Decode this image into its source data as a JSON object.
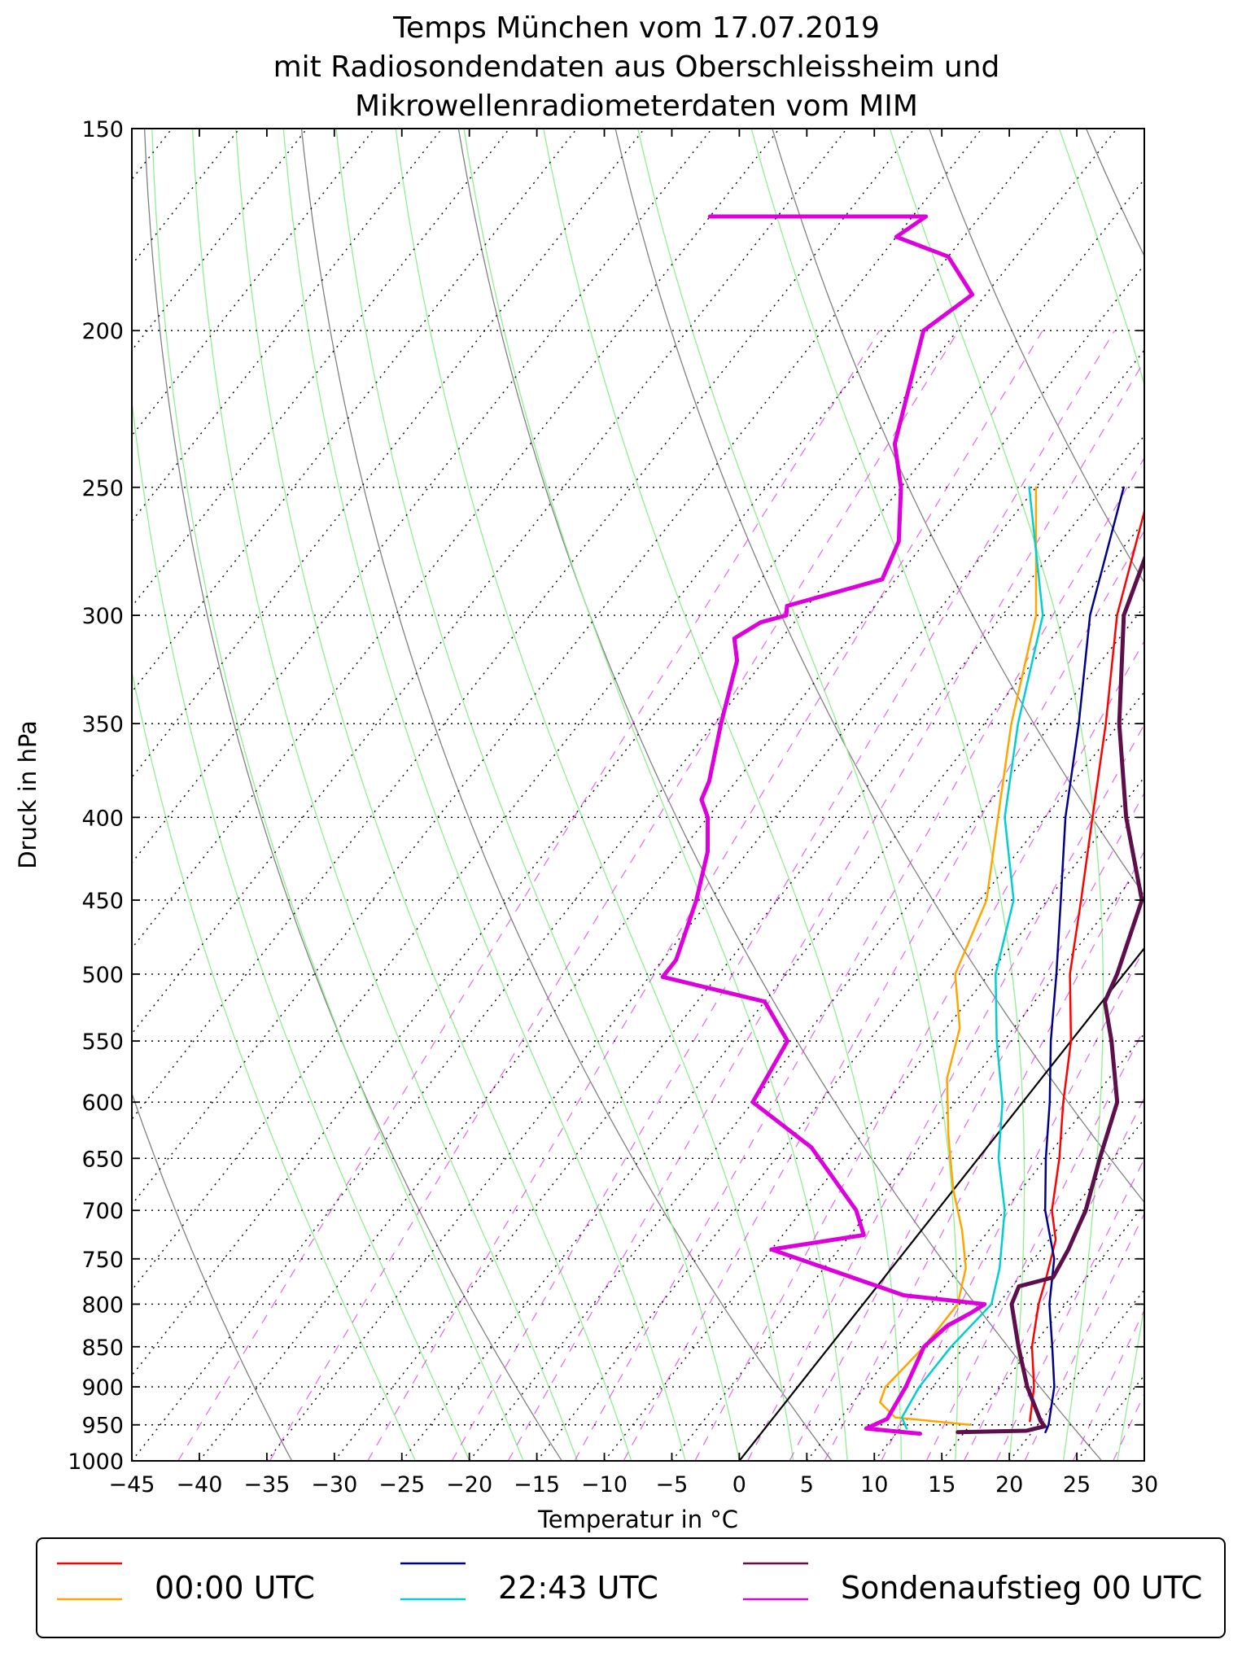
{
  "chart_data": {
    "type": "line",
    "subtype": "skew-T log-p diagram",
    "title": [
      "Temps München vom 17.07.2019",
      "mit Radiosondendaten aus Oberschleissheim und",
      "Mikrowellenradiometerdaten vom MIM"
    ],
    "xlabel": "Temperatur in °C",
    "ylabel": "Druck in hPa",
    "xlim": [
      -45,
      30
    ],
    "ylim": [
      1000,
      150
    ],
    "y_scale": "log",
    "x_ticks": [
      -45,
      -40,
      -35,
      -30,
      -25,
      -20,
      -15,
      -10,
      -5,
      0,
      5,
      10,
      15,
      20,
      25,
      30
    ],
    "y_ticks": [
      1000,
      950,
      900,
      850,
      800,
      750,
      700,
      650,
      600,
      550,
      500,
      450,
      400,
      350,
      300,
      250,
      200,
      150
    ],
    "x_tick_labels": [
      "−45",
      "−40",
      "−35",
      "−30",
      "−25",
      "−20",
      "−15",
      "−10",
      "−5",
      "0",
      "5",
      "10",
      "15",
      "20",
      "25",
      "30"
    ],
    "grid": true,
    "background_lines": {
      "isotherms": "dotted black, skewed",
      "dry_adiabats": "thin grey",
      "moist_adiabats": "thin light green",
      "mixing_ratio_lines": "dashed magenta"
    },
    "legend": {
      "placement": "bottom",
      "entries": [
        {
          "label": "00:00 UTC",
          "colors": [
            "#ff0000",
            "#ffa500"
          ]
        },
        {
          "label": "22:43 UTC",
          "colors": [
            "#00008b",
            "#00ced1"
          ]
        },
        {
          "label": "Sondenaufstieg 00 UTC",
          "colors": [
            "#5c0f4a",
            "#dd00dd"
          ]
        }
      ]
    },
    "series": [
      {
        "name": "00:00 UTC",
        "variable": "temperature",
        "color": "#ff0000",
        "points": [
          [
            19.2,
            945
          ],
          [
            17.5,
            900
          ],
          [
            15.0,
            850
          ],
          [
            13.0,
            800
          ],
          [
            12.0,
            770
          ],
          [
            10.5,
            730
          ],
          [
            8.5,
            700
          ],
          [
            6.0,
            650
          ],
          [
            3.0,
            600
          ],
          [
            0.0,
            550
          ],
          [
            -4.0,
            500
          ],
          [
            -7.5,
            450
          ],
          [
            -11.5,
            400
          ],
          [
            -16.0,
            350
          ],
          [
            -21.5,
            300
          ],
          [
            -26.5,
            250
          ]
        ]
      },
      {
        "name": "00:00 UTC",
        "variable": "dewpoint",
        "color": "#ffa500",
        "points": [
          [
            15.0,
            950
          ],
          [
            9.0,
            940
          ],
          [
            7.0,
            920
          ],
          [
            6.5,
            900
          ],
          [
            7.0,
            850
          ],
          [
            7.0,
            800
          ],
          [
            5.5,
            760
          ],
          [
            3.0,
            720
          ],
          [
            0.0,
            680
          ],
          [
            -3.5,
            630
          ],
          [
            -7.0,
            580
          ],
          [
            -9.0,
            540
          ],
          [
            -12.5,
            500
          ],
          [
            -14.5,
            450
          ],
          [
            -18.5,
            400
          ],
          [
            -23.0,
            350
          ],
          [
            -27.5,
            300
          ],
          [
            -35.0,
            250
          ]
        ]
      },
      {
        "name": "22:43 UTC",
        "variable": "temperature",
        "color": "#00008b",
        "points": [
          [
            21.0,
            960
          ],
          [
            20.8,
            950
          ],
          [
            19.0,
            900
          ],
          [
            16.5,
            850
          ],
          [
            13.8,
            800
          ],
          [
            11.5,
            750
          ],
          [
            8.0,
            700
          ],
          [
            5.0,
            650
          ],
          [
            2.0,
            600
          ],
          [
            -1.5,
            550
          ],
          [
            -5.0,
            500
          ],
          [
            -9.0,
            450
          ],
          [
            -13.5,
            400
          ],
          [
            -18.0,
            350
          ],
          [
            -23.5,
            300
          ],
          [
            -28.5,
            250
          ]
        ]
      },
      {
        "name": "22:43 UTC",
        "variable": "dewpoint",
        "color": "#00ced1",
        "points": [
          [
            10.5,
            955
          ],
          [
            9.5,
            940
          ],
          [
            9.0,
            900
          ],
          [
            9.0,
            850
          ],
          [
            9.5,
            800
          ],
          [
            8.0,
            760
          ],
          [
            5.0,
            700
          ],
          [
            1.5,
            650
          ],
          [
            -1.5,
            600
          ],
          [
            -5.5,
            550
          ],
          [
            -9.5,
            500
          ],
          [
            -12.5,
            450
          ],
          [
            -18.0,
            400
          ],
          [
            -22.5,
            350
          ],
          [
            -27.0,
            300
          ],
          [
            -35.5,
            250
          ]
        ]
      },
      {
        "name": "Sondenaufstieg 00 UTC",
        "variable": "temperature",
        "color": "#5c0f4a",
        "points": [
          [
            14.5,
            960
          ],
          [
            19.5,
            958
          ],
          [
            20.6,
            952
          ],
          [
            20.0,
            945
          ],
          [
            17.0,
            900
          ],
          [
            14.0,
            850
          ],
          [
            11.0,
            800
          ],
          [
            10.5,
            780
          ],
          [
            12.5,
            770
          ],
          [
            12.0,
            740
          ],
          [
            11.5,
            720
          ],
          [
            11.0,
            700
          ],
          [
            9.0,
            650
          ],
          [
            7.0,
            600
          ],
          [
            3.0,
            550
          ],
          [
            0.2,
            520
          ],
          [
            -0.5,
            500
          ],
          [
            -3.0,
            450
          ],
          [
            -9.0,
            400
          ],
          [
            -15.0,
            350
          ],
          [
            -21.0,
            300
          ],
          [
            -25.0,
            250
          ],
          [
            -29.0,
            200
          ],
          [
            -32.0,
            180
          ],
          [
            -31.5,
            170
          ],
          [
            -30.5,
            165
          ],
          [
            -27.0,
            158
          ],
          [
            -24.5,
            150
          ]
        ]
      },
      {
        "name": "Sondenaufstieg 00 UTC",
        "variable": "dewpoint",
        "color": "#dd00dd",
        "points": [
          [
            11.8,
            962
          ],
          [
            7.5,
            955
          ],
          [
            8.5,
            942
          ],
          [
            8.0,
            900
          ],
          [
            7.0,
            850
          ],
          [
            7.5,
            825
          ],
          [
            8.5,
            810
          ],
          [
            9.0,
            800
          ],
          [
            2.5,
            790
          ],
          [
            -10.0,
            740
          ],
          [
            -4.0,
            725
          ],
          [
            -6.0,
            700
          ],
          [
            -13.0,
            640
          ],
          [
            -20.0,
            600
          ],
          [
            -21.0,
            550
          ],
          [
            -25.0,
            520
          ],
          [
            -34.0,
            502
          ],
          [
            -34.0,
            490
          ],
          [
            -36.0,
            450
          ],
          [
            -38.0,
            420
          ],
          [
            -40.0,
            400
          ],
          [
            -41.5,
            390
          ],
          [
            -42.0,
            380
          ],
          [
            -44.5,
            350
          ],
          [
            -47.0,
            320
          ],
          [
            -48.5,
            310
          ],
          [
            -47.5,
            303
          ],
          [
            -46.0,
            300
          ],
          [
            -46.5,
            296
          ],
          [
            -41.0,
            285
          ],
          [
            -42.0,
            270
          ],
          [
            -45.0,
            250
          ],
          [
            -48.0,
            235
          ],
          [
            -52.5,
            200
          ],
          [
            -51.0,
            190
          ],
          [
            -55.0,
            180
          ],
          [
            -60.0,
            175
          ],
          [
            -59.0,
            170
          ],
          [
            -75.0,
            170
          ]
        ]
      }
    ]
  }
}
